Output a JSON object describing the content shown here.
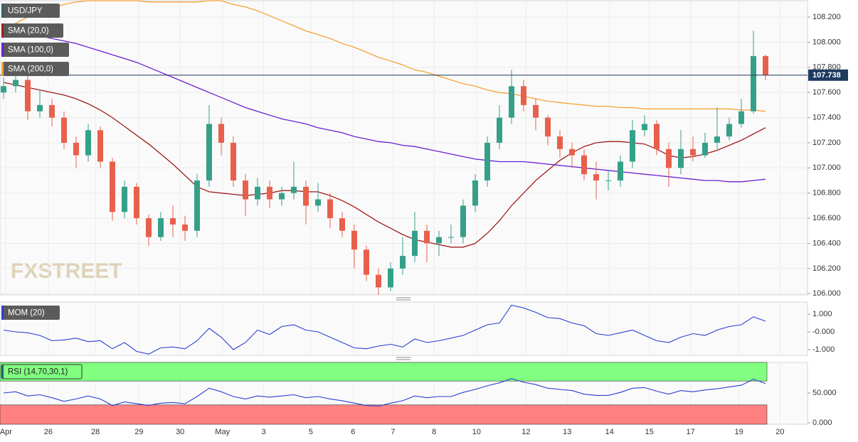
{
  "chart_data": [
    {
      "type": "candlestick",
      "title": "USD/JPY",
      "watermark": "FXSTREET",
      "up_color": "#35a08a",
      "down_color": "#e8604c",
      "grid": true,
      "last_price": 107.738,
      "last_price_color": "#1e3a5f",
      "open": [
        107.6,
        107.65,
        107.7,
        107.45,
        107.5,
        107.4,
        107.2,
        107.1,
        107.3,
        107.05,
        106.65,
        106.85,
        106.6,
        106.45,
        106.6,
        106.55,
        106.5,
        106.9,
        107.35,
        107.2,
        106.9,
        106.75,
        106.85,
        106.75,
        106.8,
        106.85,
        106.7,
        106.75,
        106.6,
        106.5,
        106.35,
        106.15,
        106.05,
        106.2,
        106.3,
        106.5,
        106.4,
        106.45,
        106.45,
        106.7,
        106.9,
        107.2,
        107.4,
        107.65,
        107.5,
        107.4,
        107.25,
        107.15,
        107.1,
        106.95,
        106.9,
        106.9,
        107.05,
        107.3,
        107.35,
        107.15,
        107.0,
        107.15,
        107.1,
        107.2,
        107.25,
        107.35,
        107.45,
        107.89
      ],
      "high": [
        107.72,
        107.76,
        107.74,
        107.62,
        107.55,
        107.45,
        107.25,
        107.35,
        107.33,
        107.08,
        106.9,
        106.88,
        106.63,
        106.65,
        106.7,
        106.62,
        106.95,
        107.5,
        107.4,
        107.25,
        106.95,
        106.92,
        106.9,
        106.85,
        107.05,
        106.9,
        106.88,
        106.8,
        106.65,
        106.55,
        106.38,
        106.2,
        106.25,
        106.45,
        106.65,
        106.55,
        106.5,
        106.55,
        106.75,
        106.95,
        107.25,
        107.5,
        107.78,
        107.7,
        107.55,
        107.42,
        107.3,
        107.2,
        107.15,
        107.05,
        106.98,
        107.1,
        107.38,
        107.42,
        107.38,
        107.2,
        107.3,
        107.25,
        107.28,
        107.48,
        107.4,
        107.55,
        108.09,
        107.9
      ],
      "low": [
        107.55,
        107.6,
        107.38,
        107.4,
        107.33,
        107.15,
        107.0,
        107.05,
        107.0,
        106.58,
        106.6,
        106.55,
        106.38,
        106.42,
        106.45,
        106.42,
        106.45,
        106.85,
        107.1,
        106.85,
        106.62,
        106.7,
        106.68,
        106.7,
        106.75,
        106.55,
        106.65,
        106.52,
        106.45,
        106.2,
        106.1,
        105.99,
        106.02,
        106.15,
        106.25,
        106.25,
        106.3,
        106.4,
        106.4,
        106.65,
        106.85,
        107.15,
        107.35,
        107.45,
        107.3,
        107.18,
        107.08,
        107.0,
        106.9,
        106.75,
        106.82,
        106.85,
        107.0,
        107.25,
        107.1,
        106.85,
        106.95,
        107.05,
        107.08,
        107.15,
        107.22,
        107.32,
        107.43,
        107.7
      ],
      "close": [
        107.65,
        107.7,
        107.45,
        107.5,
        107.4,
        107.2,
        107.1,
        107.3,
        107.05,
        106.65,
        106.85,
        106.6,
        106.45,
        106.6,
        106.55,
        106.5,
        106.9,
        107.35,
        107.2,
        106.9,
        106.75,
        106.85,
        106.75,
        106.8,
        106.85,
        106.7,
        106.75,
        106.6,
        106.5,
        106.35,
        106.15,
        106.05,
        106.2,
        106.3,
        106.5,
        106.4,
        106.45,
        106.45,
        106.7,
        106.9,
        107.2,
        107.4,
        107.65,
        107.5,
        107.4,
        107.25,
        107.15,
        107.1,
        106.95,
        106.9,
        106.9,
        107.05,
        107.3,
        107.35,
        107.15,
        107.0,
        107.15,
        107.1,
        107.2,
        107.25,
        107.35,
        107.45,
        107.89,
        107.738
      ],
      "overlays": [
        {
          "name": "SMA (20,0)",
          "color": "#a31b1b",
          "values": [
            107.68,
            107.66,
            107.64,
            107.62,
            107.6,
            107.58,
            107.55,
            107.51,
            107.46,
            107.4,
            107.33,
            107.26,
            107.19,
            107.11,
            107.03,
            106.94,
            106.85,
            106.81,
            106.8,
            106.79,
            106.78,
            106.79,
            106.8,
            106.82,
            106.82,
            106.81,
            106.81,
            106.78,
            106.74,
            106.69,
            106.63,
            106.57,
            106.52,
            106.47,
            106.43,
            106.41,
            106.39,
            106.37,
            106.37,
            106.4,
            106.48,
            106.58,
            106.7,
            106.8,
            106.9,
            106.98,
            107.06,
            107.12,
            107.17,
            107.2,
            107.21,
            107.21,
            107.2,
            107.19,
            107.15,
            107.1,
            107.08,
            107.09,
            107.11,
            107.14,
            107.18,
            107.22,
            107.27,
            107.32
          ]
        },
        {
          "name": "SMA (100,0)",
          "color": "#6a1fd0",
          "values": [
            108.11,
            108.09,
            108.07,
            108.05,
            108.03,
            108.01,
            107.99,
            107.96,
            107.93,
            107.9,
            107.87,
            107.84,
            107.8,
            107.76,
            107.72,
            107.68,
            107.64,
            107.6,
            107.56,
            107.52,
            107.48,
            107.45,
            107.42,
            107.39,
            107.37,
            107.35,
            107.32,
            107.3,
            107.28,
            107.25,
            107.23,
            107.21,
            107.2,
            107.18,
            107.17,
            107.15,
            107.13,
            107.11,
            107.09,
            107.07,
            107.06,
            107.05,
            107.05,
            107.05,
            107.04,
            107.03,
            107.02,
            107.01,
            107.0,
            106.99,
            106.98,
            106.97,
            106.96,
            106.95,
            106.94,
            106.93,
            106.92,
            106.91,
            106.9,
            106.9,
            106.89,
            106.89,
            106.9,
            106.91
          ]
        },
        {
          "name": "SMA (200,0)",
          "color": "#f7a135",
          "values": [
            108.1,
            108.15,
            108.2,
            108.24,
            108.27,
            108.3,
            108.32,
            108.33,
            108.33,
            108.33,
            108.33,
            108.33,
            108.32,
            108.32,
            108.32,
            108.32,
            108.32,
            108.33,
            108.33,
            108.3,
            108.28,
            108.25,
            108.21,
            108.17,
            108.13,
            108.09,
            108.06,
            108.03,
            107.99,
            107.96,
            107.92,
            107.88,
            107.85,
            107.82,
            107.78,
            107.76,
            107.73,
            107.7,
            107.67,
            107.65,
            107.62,
            107.6,
            107.59,
            107.57,
            107.55,
            107.53,
            107.52,
            107.51,
            107.5,
            107.49,
            107.49,
            107.48,
            107.48,
            107.47,
            107.47,
            107.47,
            107.47,
            107.47,
            107.47,
            107.47,
            107.47,
            107.46,
            107.46,
            107.45
          ]
        }
      ],
      "xlim": [
        -0.294,
        66.47
      ],
      "xticks": [
        {
          "value": 0.2,
          "label": "Apr"
        },
        {
          "value": 3.7,
          "label": "26"
        },
        {
          "value": 7.6,
          "label": "28"
        },
        {
          "value": 11.2,
          "label": "29"
        },
        {
          "value": 14.6,
          "label": "30"
        },
        {
          "value": 18.1,
          "label": "May"
        },
        {
          "value": 21.5,
          "label": "3"
        },
        {
          "value": 25.4,
          "label": "5"
        },
        {
          "value": 28.9,
          "label": "6"
        },
        {
          "value": 32.2,
          "label": "7"
        },
        {
          "value": 35.6,
          "label": "8"
        },
        {
          "value": 39.1,
          "label": "10"
        },
        {
          "value": 43.2,
          "label": "12"
        },
        {
          "value": 46.6,
          "label": "13"
        },
        {
          "value": 50.1,
          "label": "14"
        },
        {
          "value": 53.4,
          "label": "15"
        },
        {
          "value": 56.8,
          "label": "17"
        },
        {
          "value": 60.8,
          "label": "19"
        },
        {
          "value": 64.2,
          "label": "20"
        }
      ],
      "ylim": [
        105.99,
        108.33
      ],
      "yticks": [
        {
          "value": 106.0,
          "label": "106.000"
        },
        {
          "value": 106.2,
          "label": "106.200"
        },
        {
          "value": 106.4,
          "label": "106.400"
        },
        {
          "value": 106.6,
          "label": "106.600"
        },
        {
          "value": 106.8,
          "label": "106.800"
        },
        {
          "value": 107.0,
          "label": "107.000"
        },
        {
          "value": 107.2,
          "label": "107.200"
        },
        {
          "value": 107.4,
          "label": "107.400"
        },
        {
          "value": 107.6,
          "label": "107.600"
        },
        {
          "value": 107.8,
          "label": "107.800"
        },
        {
          "value": 108.0,
          "label": "108.000"
        },
        {
          "value": 108.2,
          "label": "108.200"
        }
      ]
    },
    {
      "type": "line",
      "title": "MOM (20)",
      "color": "#2a3fd6",
      "values": [
        0.1,
        0.0,
        -0.05,
        -0.2,
        -0.5,
        -0.45,
        -0.35,
        -0.55,
        -0.5,
        -0.95,
        -0.6,
        -1.1,
        -1.25,
        -0.9,
        -0.85,
        -0.95,
        -0.5,
        0.2,
        -0.3,
        -1.0,
        -0.6,
        0.1,
        -0.15,
        0.3,
        0.4,
        0.1,
        0.0,
        -0.3,
        -0.6,
        -0.9,
        -0.95,
        -0.8,
        -0.7,
        -0.85,
        -0.4,
        -0.6,
        -0.5,
        -0.35,
        -0.2,
        0.1,
        0.4,
        0.5,
        1.5,
        1.35,
        1.1,
        0.8,
        0.75,
        0.5,
        0.35,
        -0.1,
        -0.2,
        -0.05,
        0.1,
        -0.2,
        -0.5,
        -0.6,
        -0.3,
        -0.1,
        -0.2,
        0.1,
        0.3,
        0.4,
        0.85,
        0.6
      ],
      "ylim": [
        -1.32,
        1.68
      ],
      "yticks": [
        {
          "value": 1,
          "label": "1.000"
        },
        {
          "value": 0,
          "label": "-0.000"
        },
        {
          "value": -1,
          "label": "-1.000"
        }
      ]
    },
    {
      "type": "line",
      "title": "RSI (14,70,30,1)",
      "color": "#2a3fd6",
      "overbought": 70,
      "oversold": 30,
      "overbought_color": "#80ff80",
      "oversold_color": "#ff8080",
      "values": [
        50,
        52,
        45,
        47,
        42,
        36,
        40,
        45,
        40,
        29,
        35,
        32,
        29,
        33,
        34,
        32,
        44,
        58,
        52,
        44,
        40,
        45,
        43,
        45,
        47,
        42,
        44,
        40,
        37,
        33,
        29,
        28,
        33,
        37,
        45,
        42,
        44,
        44,
        51,
        56,
        62,
        67,
        74,
        68,
        64,
        58,
        56,
        54,
        48,
        46,
        46,
        51,
        58,
        59,
        53,
        48,
        54,
        52,
        55,
        57,
        60,
        63,
        73,
        66
      ],
      "ylim": [
        -2.4,
        101.2
      ],
      "yticks": [
        {
          "value": 50,
          "label": "50.000"
        },
        {
          "value": 0,
          "label": "0.000"
        }
      ]
    }
  ]
}
